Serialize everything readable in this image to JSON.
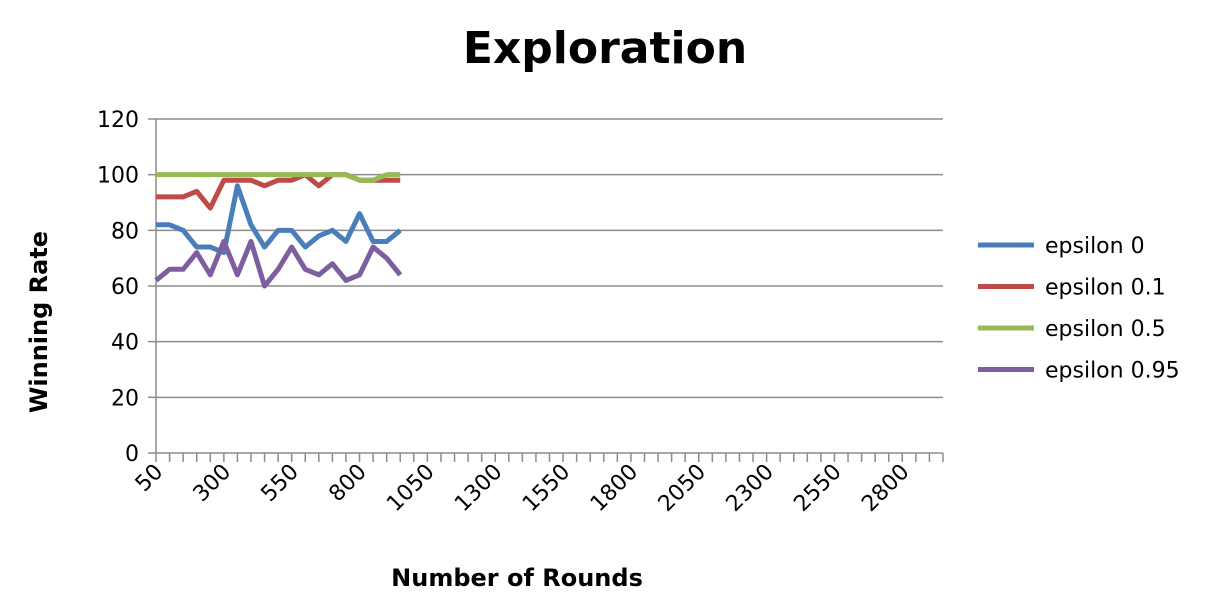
{
  "chart_data": {
    "type": "line",
    "title": "Exploration",
    "xlabel": "Number of Rounds",
    "ylabel": "Winning Rate",
    "ylim": [
      0,
      120
    ],
    "yticks": [
      0,
      20,
      40,
      60,
      80,
      100,
      120
    ],
    "x_tick_labels": [
      "50",
      "300",
      "550",
      "800",
      "1050",
      "1300",
      "1550",
      "1800",
      "2050",
      "2300",
      "2550",
      "2800"
    ],
    "x": [
      50,
      100,
      150,
      200,
      250,
      300,
      350,
      400,
      450,
      500,
      550,
      600,
      650,
      700,
      750,
      800,
      850,
      900,
      950
    ],
    "grid": true,
    "legend_position": "right",
    "series": [
      {
        "name": "epsilon 0",
        "color": "#4a7ebb",
        "values": [
          82,
          82,
          80,
          74,
          74,
          72,
          96,
          82,
          74,
          80,
          80,
          74,
          78,
          80,
          76,
          86,
          76,
          76,
          80
        ]
      },
      {
        "name": "epsilon 0.1",
        "color": "#be4b48",
        "values": [
          92,
          92,
          92,
          94,
          88,
          98,
          98,
          98,
          96,
          98,
          98,
          100,
          96,
          100,
          100,
          98,
          98,
          98,
          98
        ]
      },
      {
        "name": "epsilon 0.5",
        "color": "#98b954",
        "values": [
          100,
          100,
          100,
          100,
          100,
          100,
          100,
          100,
          100,
          100,
          100,
          100,
          100,
          100,
          100,
          98,
          98,
          100,
          100
        ]
      },
      {
        "name": "epsilon 0.95",
        "color": "#7d5fa0",
        "values": [
          62,
          66,
          66,
          72,
          64,
          76,
          64,
          76,
          60,
          66,
          74,
          66,
          64,
          68,
          62,
          64,
          74,
          70,
          64
        ]
      }
    ]
  }
}
